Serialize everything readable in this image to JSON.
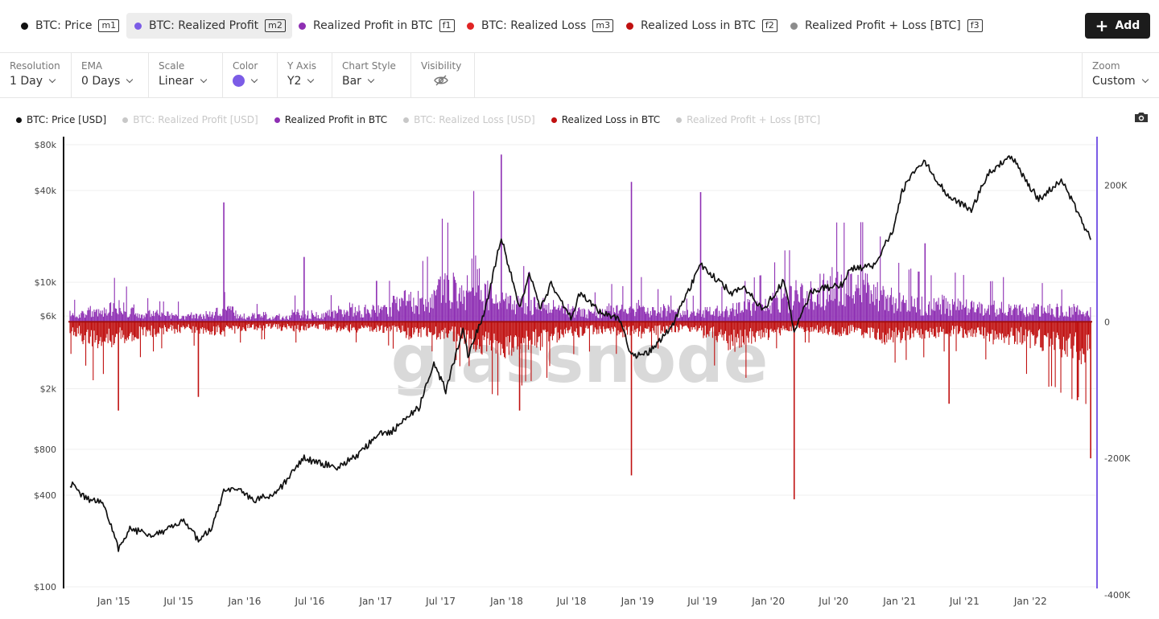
{
  "tabs": [
    {
      "label": "BTC: Price",
      "key": "m1",
      "color": "#111111",
      "active": false
    },
    {
      "label": "BTC: Realized Profit",
      "key": "m2",
      "color": "#7b5ce6",
      "active": true
    },
    {
      "label": "Realized Profit in BTC",
      "key": "f1",
      "color": "#8e2fb3",
      "active": false
    },
    {
      "label": "BTC: Realized Loss",
      "key": "m3",
      "color": "#e02424",
      "active": false
    },
    {
      "label": "Realized Loss in BTC",
      "key": "f2",
      "color": "#c01010",
      "active": false
    },
    {
      "label": "Realized Profit + Loss [BTC]",
      "key": "f3",
      "color": "#8c8c8c",
      "active": false
    }
  ],
  "add_button": {
    "label": "Add",
    "icon": "plus-icon"
  },
  "options": {
    "resolution": {
      "label": "Resolution",
      "value": "1 Day"
    },
    "ema": {
      "label": "EMA",
      "value": "0 Days"
    },
    "scale": {
      "label": "Scale",
      "value": "Linear"
    },
    "color": {
      "label": "Color",
      "value": "#7b5ce6"
    },
    "y_axis": {
      "label": "Y Axis",
      "value": "Y2"
    },
    "chart_style": {
      "label": "Chart Style",
      "value": "Bar"
    },
    "visibility": {
      "label": "Visibility",
      "icon": "eye-off-icon"
    },
    "zoom": {
      "label": "Zoom",
      "value": "Custom"
    }
  },
  "legend": [
    {
      "label": "BTC: Price [USD]",
      "color": "#111111",
      "dim": false
    },
    {
      "label": "BTC: Realized Profit [USD]",
      "color": "#7b5ce6",
      "dim": true
    },
    {
      "label": "Realized Profit in BTC",
      "color": "#8e2fb3",
      "dim": false
    },
    {
      "label": "BTC: Realized Loss [USD]",
      "color": "#e02424",
      "dim": true
    },
    {
      "label": "Realized Loss in BTC",
      "color": "#c01010",
      "dim": false
    },
    {
      "label": "Realized Profit + Loss [BTC]",
      "color": "#8c8c8c",
      "dim": true
    }
  ],
  "watermark": "glassnode",
  "chart_data": {
    "type": "bar",
    "log_y_left": true,
    "y_left_ticks": [
      {
        "v": 100,
        "label": "$100"
      },
      {
        "v": 400,
        "label": "$400"
      },
      {
        "v": 800,
        "label": "$800"
      },
      {
        "v": 2000,
        "label": "$2k"
      },
      {
        "v": 6000,
        "label": "$6k"
      },
      {
        "v": 10000,
        "label": "$10k"
      },
      {
        "v": 40000,
        "label": "$40k"
      },
      {
        "v": 80000,
        "label": "$80k"
      }
    ],
    "y_right_ticks": [
      {
        "v": 200000,
        "label": "200K"
      },
      {
        "v": 0,
        "label": "0"
      },
      {
        "v": -200000,
        "label": "-200K"
      },
      {
        "v": -400000,
        "label": "-400K"
      }
    ],
    "ylim_left": [
      100,
      80000
    ],
    "ylim_right": [
      -400000,
      250000
    ],
    "x_range": [
      "2014-09-01",
      "2022-06-20"
    ],
    "x_ticks": [
      "Jan '15",
      "Jul '15",
      "Jan '16",
      "Jul '16",
      "Jan '17",
      "Jul '17",
      "Jan '18",
      "Jul '18",
      "Jan '19",
      "Jul '19",
      "Jan '20",
      "Jul '20",
      "Jan '21",
      "Jul '21",
      "Jan '22"
    ],
    "x_tick_dates": [
      "2015-01-01",
      "2015-07-01",
      "2016-01-01",
      "2016-07-01",
      "2017-01-01",
      "2017-07-01",
      "2018-01-01",
      "2018-07-01",
      "2019-01-01",
      "2019-07-01",
      "2020-01-01",
      "2020-07-01",
      "2021-01-01",
      "2021-07-01",
      "2022-01-01"
    ],
    "series": [
      {
        "name": "BTC: Price [USD]",
        "axis": "left",
        "color": "#111111",
        "points": [
          [
            "2014-09-01",
            480
          ],
          [
            "2014-10-15",
            380
          ],
          [
            "2014-12-01",
            360
          ],
          [
            "2015-01-14",
            180
          ],
          [
            "2015-02-15",
            240
          ],
          [
            "2015-04-15",
            220
          ],
          [
            "2015-06-15",
            245
          ],
          [
            "2015-07-15",
            280
          ],
          [
            "2015-08-25",
            200
          ],
          [
            "2015-10-01",
            240
          ],
          [
            "2015-11-04",
            420
          ],
          [
            "2015-12-15",
            430
          ],
          [
            "2016-02-01",
            370
          ],
          [
            "2016-04-01",
            420
          ],
          [
            "2016-06-15",
            700
          ],
          [
            "2016-07-15",
            660
          ],
          [
            "2016-09-15",
            610
          ],
          [
            "2016-11-15",
            740
          ],
          [
            "2017-01-03",
            1000
          ],
          [
            "2017-02-15",
            1050
          ],
          [
            "2017-03-15",
            1200
          ],
          [
            "2017-05-01",
            1500
          ],
          [
            "2017-06-12",
            2900
          ],
          [
            "2017-07-15",
            1950
          ],
          [
            "2017-09-01",
            4800
          ],
          [
            "2017-09-15",
            3300
          ],
          [
            "2017-11-01",
            6500
          ],
          [
            "2017-12-17",
            19500
          ],
          [
            "2018-02-06",
            6900
          ],
          [
            "2018-03-05",
            11500
          ],
          [
            "2018-04-06",
            6700
          ],
          [
            "2018-05-05",
            9800
          ],
          [
            "2018-06-29",
            5900
          ],
          [
            "2018-07-24",
            8400
          ],
          [
            "2018-09-15",
            6500
          ],
          [
            "2018-11-15",
            5600
          ],
          [
            "2018-12-15",
            3250
          ],
          [
            "2019-02-01",
            3500
          ],
          [
            "2019-04-02",
            4900
          ],
          [
            "2019-06-26",
            12900
          ],
          [
            "2019-08-15",
            10200
          ],
          [
            "2019-09-25",
            8400
          ],
          [
            "2019-10-26",
            9300
          ],
          [
            "2019-12-17",
            6600
          ],
          [
            "2020-02-13",
            10300
          ],
          [
            "2020-03-13",
            4900
          ],
          [
            "2020-05-01",
            8800
          ],
          [
            "2020-07-25",
            9700
          ],
          [
            "2020-08-17",
            12200
          ],
          [
            "2020-10-21",
            12900
          ],
          [
            "2020-12-17",
            23000
          ],
          [
            "2021-01-08",
            40000
          ],
          [
            "2021-02-21",
            57000
          ],
          [
            "2021-03-13",
            61000
          ],
          [
            "2021-05-19",
            36000
          ],
          [
            "2021-07-20",
            30000
          ],
          [
            "2021-09-06",
            52000
          ],
          [
            "2021-11-09",
            67500
          ],
          [
            "2021-12-15",
            48000
          ],
          [
            "2022-01-24",
            35000
          ],
          [
            "2022-03-28",
            47000
          ],
          [
            "2022-05-12",
            29000
          ],
          [
            "2022-06-18",
            19000
          ]
        ]
      },
      {
        "name": "Realized Profit in BTC",
        "axis": "right",
        "color": "#8e2fb3",
        "values": [
          15000,
          22000,
          18000,
          26000,
          30000,
          24000,
          18000,
          16000,
          14000,
          14000,
          13000,
          13000,
          15000,
          20000,
          22000,
          12000,
          12000,
          13000,
          11000,
          10000,
          18000,
          16000,
          14000,
          18000,
          22000,
          26000,
          25000,
          25000,
          28000,
          35000,
          42000,
          42000,
          45000,
          70000,
          68000,
          62000,
          90000,
          60000,
          52000,
          40000,
          38000,
          34000,
          35000,
          30000,
          24000,
          22000,
          18000,
          20000,
          26000,
          24000,
          22000,
          30000,
          22000,
          24000,
          18000,
          16000,
          18000,
          20000,
          24000,
          26000,
          28000,
          30000,
          32000,
          40000,
          48000,
          60000,
          54000,
          64000,
          72000,
          68000,
          70000,
          68000,
          58000,
          48000,
          40000,
          36000,
          34000,
          32000,
          36000,
          34000,
          32000,
          30000,
          28000,
          28000,
          30000,
          26000,
          28000,
          26000,
          24000,
          22000,
          24000,
          20000
        ],
        "spikes": [
          {
            "date": "2015-11-04",
            "value": 175000
          },
          {
            "date": "2016-06-15",
            "value": 95000
          },
          {
            "date": "2017-01-03",
            "value": 60000
          },
          {
            "date": "2017-12-17",
            "value": 245000
          },
          {
            "date": "2018-12-15",
            "value": 205000
          },
          {
            "date": "2019-06-26",
            "value": 190000
          },
          {
            "date": "2021-03-13",
            "value": 115000
          }
        ],
        "bins_per_month": 2
      },
      {
        "name": "Realized Loss in BTC",
        "axis": "right",
        "color": "#c01010",
        "values": [
          -22000,
          -30000,
          -40000,
          -36000,
          -30000,
          -28000,
          -24000,
          -20000,
          -18000,
          -16000,
          -14000,
          -16000,
          -18000,
          -20000,
          -16000,
          -14000,
          -12000,
          -12000,
          -10000,
          -12000,
          -14000,
          -12000,
          -10000,
          -12000,
          -14000,
          -14000,
          -12000,
          -14000,
          -16000,
          -18000,
          -26000,
          -22000,
          -20000,
          -24000,
          -26000,
          -30000,
          -40000,
          -46000,
          -50000,
          -48000,
          -44000,
          -40000,
          -38000,
          -30000,
          -26000,
          -22000,
          -20000,
          -18000,
          -16000,
          -22000,
          -20000,
          -22000,
          -18000,
          -16000,
          -14000,
          -14000,
          -16000,
          -22000,
          -30000,
          -40000,
          -38000,
          -30000,
          -24000,
          -18000,
          -14000,
          -12000,
          -14000,
          -16000,
          -18000,
          -20000,
          -18000,
          -22000,
          -26000,
          -30000,
          -28000,
          -26000,
          -24000,
          -22000,
          -20000,
          -20000,
          -22000,
          -24000,
          -26000,
          -30000,
          -32000,
          -30000,
          -36000,
          -40000,
          -44000,
          -48000,
          -52000,
          -56000
        ],
        "spikes": [
          {
            "date": "2015-01-14",
            "value": -130000
          },
          {
            "date": "2015-08-25",
            "value": -110000
          },
          {
            "date": "2018-02-06",
            "value": -130000
          },
          {
            "date": "2018-12-15",
            "value": -225000
          },
          {
            "date": "2020-03-13",
            "value": -260000
          },
          {
            "date": "2021-05-19",
            "value": -120000
          },
          {
            "date": "2022-05-12",
            "value": -115000
          },
          {
            "date": "2022-06-18",
            "value": -200000
          }
        ]
      }
    ]
  }
}
